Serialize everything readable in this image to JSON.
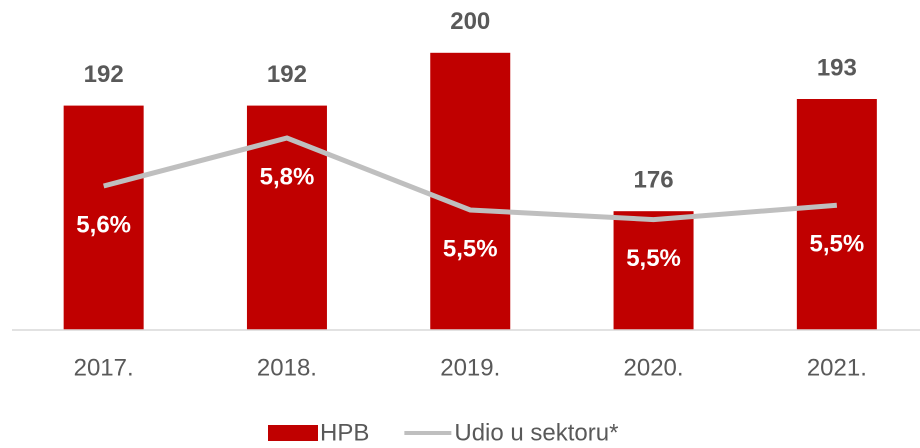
{
  "chart_data": {
    "type": "bar",
    "categories": [
      "2017.",
      "2018.",
      "2019.",
      "2020.",
      "2021."
    ],
    "series": [
      {
        "name": "HPB",
        "type": "bar",
        "color": "#c00000",
        "values": [
          192,
          192,
          200,
          176,
          193
        ]
      },
      {
        "name": "Udio u sektoru*",
        "type": "line",
        "axis": "y2",
        "color": "#bfbfbf",
        "values": [
          5.6,
          5.8,
          5.5,
          5.46,
          5.52
        ],
        "value_labels": [
          "5,6%",
          "5,8%",
          "5,5%",
          "5,5%",
          "5,5%"
        ]
      }
    ],
    "ylim": [
      158,
      208
    ],
    "y2lim": [
      5.0,
      6.375
    ],
    "grid": false,
    "legend": "bottom"
  }
}
